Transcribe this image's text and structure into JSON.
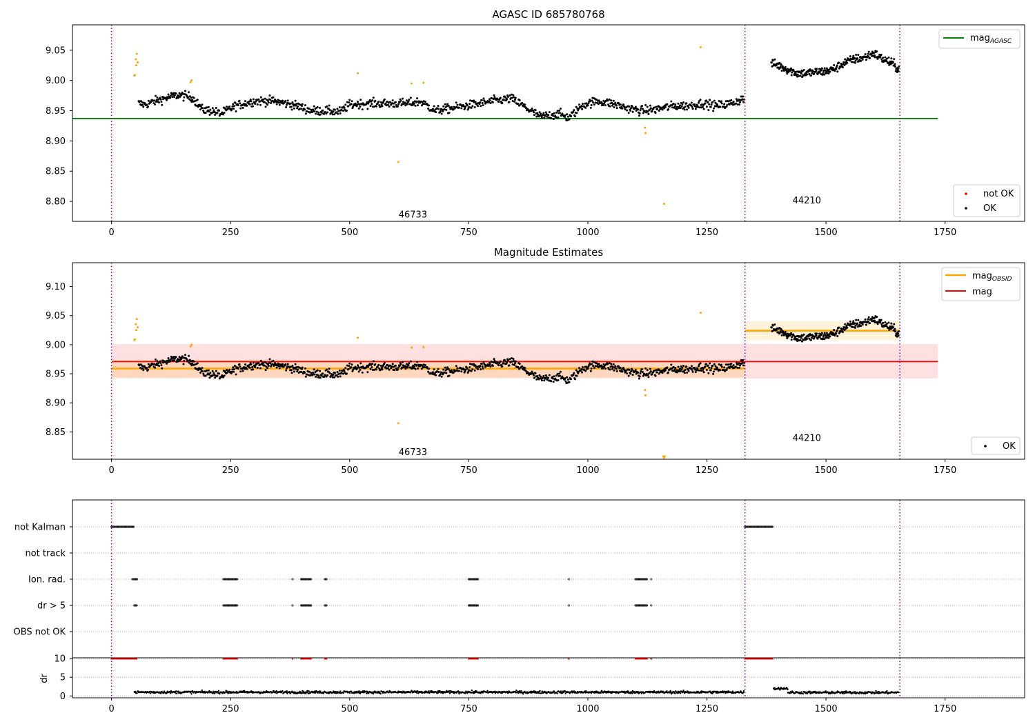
{
  "chart_data": [
    {
      "type": "scatter",
      "title": "AGASC ID 685780768",
      "xlim": [
        -82,
        1917
      ],
      "ylim": [
        8.767,
        9.092
      ],
      "x_ticks": [
        0,
        250,
        500,
        750,
        1000,
        1250,
        1500,
        1750
      ],
      "x_tick_labels": [
        "0",
        "250",
        "500",
        "750",
        "1000",
        "1250",
        "1500",
        "1750"
      ],
      "y_ticks": [
        8.8,
        8.85,
        8.9,
        8.95,
        9.0,
        9.05
      ],
      "y_tick_labels": [
        "8.80",
        "8.85",
        "8.90",
        "8.95",
        "9.00",
        "9.05"
      ],
      "obs_boundaries": [
        0,
        1330,
        1655
      ],
      "obs_labels": [
        {
          "text": "46733",
          "x": 665,
          "y": 8.778
        },
        {
          "text": "44210",
          "x": 1492,
          "y": 8.801
        }
      ],
      "mag_agasc": {
        "value": 8.937,
        "x_range": [
          -82,
          1735
        ]
      },
      "series": [
        {
          "name": "not OK",
          "color": "#ffa500",
          "points": [
            [
              48,
              9.008
            ],
            [
              49,
              9.009
            ],
            [
              51,
              9.035
            ],
            [
              52,
              9.025
            ],
            [
              53,
              9.044
            ],
            [
              55,
              9.03
            ],
            [
              166,
              8.997
            ],
            [
              168,
              9.0
            ],
            [
              517,
              9.012
            ],
            [
              602,
              8.865
            ],
            [
              630,
              8.995
            ],
            [
              655,
              8.996
            ],
            [
              1120,
              8.922
            ],
            [
              1121,
              8.913
            ],
            [
              1160,
              8.796
            ],
            [
              1237,
              9.055
            ]
          ]
        },
        {
          "name": "OK",
          "color": "#000000",
          "segments": [
            {
              "x_start": 57,
              "x_end": 1328,
              "points": 1040,
              "anchors": [
                [
                  57,
                  8.962
                ],
                [
                  70,
                  8.96
                ],
                [
                  100,
                  8.968
                ],
                [
                  140,
                  8.976
                ],
                [
                  170,
                  8.972
                ],
                [
                  190,
                  8.952
                ],
                [
                  210,
                  8.95
                ],
                [
                  230,
                  8.945
                ],
                [
                  260,
                  8.958
                ],
                [
                  300,
                  8.966
                ],
                [
                  340,
                  8.966
                ],
                [
                  380,
                  8.96
                ],
                [
                  420,
                  8.95
                ],
                [
                  450,
                  8.95
                ],
                [
                  480,
                  8.948
                ],
                [
                  500,
                  8.96
                ],
                [
                  540,
                  8.962
                ],
                [
                  580,
                  8.962
                ],
                [
                  620,
                  8.962
                ],
                [
                  650,
                  8.965
                ],
                [
                  680,
                  8.95
                ],
                [
                  720,
                  8.955
                ],
                [
                  760,
                  8.96
                ],
                [
                  800,
                  8.966
                ],
                [
                  840,
                  8.97
                ],
                [
                  870,
                  8.955
                ],
                [
                  900,
                  8.94
                ],
                [
                  940,
                  8.945
                ],
                [
                  960,
                  8.938
                ],
                [
                  990,
                  8.96
                ],
                [
                  1020,
                  8.966
                ],
                [
                  1050,
                  8.962
                ],
                [
                  1080,
                  8.955
                ],
                [
                  1110,
                  8.95
                ],
                [
                  1140,
                  8.952
                ],
                [
                  1180,
                  8.958
                ],
                [
                  1210,
                  8.958
                ],
                [
                  1240,
                  8.962
                ],
                [
                  1270,
                  8.958
                ],
                [
                  1300,
                  8.962
                ],
                [
                  1328,
                  8.97
                ]
              ]
            },
            {
              "x_start": 1385,
              "x_end": 1653,
              "points": 290,
              "anchors": [
                [
                  1385,
                  9.028
                ],
                [
                  1400,
                  9.025
                ],
                [
                  1420,
                  9.018
                ],
                [
                  1440,
                  9.012
                ],
                [
                  1460,
                  9.012
                ],
                [
                  1480,
                  9.014
                ],
                [
                  1500,
                  9.015
                ],
                [
                  1520,
                  9.02
                ],
                [
                  1540,
                  9.03
                ],
                [
                  1560,
                  9.035
                ],
                [
                  1580,
                  9.038
                ],
                [
                  1600,
                  9.045
                ],
                [
                  1620,
                  9.035
                ],
                [
                  1640,
                  9.028
                ],
                [
                  1650,
                  9.02
                ]
              ]
            }
          ]
        }
      ],
      "legend": [
        {
          "label": "mag",
          "subscript": "AGASC",
          "color": "#008000",
          "kind": "line",
          "position": "top-right"
        },
        {
          "label": "not OK",
          "color": "#ff0000",
          "kind": "point",
          "position": "bottom-right"
        },
        {
          "label": "OK",
          "color": "#000000",
          "kind": "point",
          "position": "bottom-right"
        }
      ]
    },
    {
      "type": "scatter",
      "title": "Magnitude Estimates",
      "xlim": [
        -82,
        1917
      ],
      "ylim": [
        8.803,
        9.141
      ],
      "x_ticks": [
        0,
        250,
        500,
        750,
        1000,
        1250,
        1500,
        1750
      ],
      "x_tick_labels": [
        "0",
        "250",
        "500",
        "750",
        "1000",
        "1250",
        "1500",
        "1750"
      ],
      "y_ticks": [
        8.85,
        8.9,
        8.95,
        9.0,
        9.05,
        9.1
      ],
      "y_tick_labels": [
        "8.85",
        "8.90",
        "8.95",
        "9.00",
        "9.05",
        "9.10"
      ],
      "obs_boundaries": [
        0,
        1330,
        1655
      ],
      "obs_labels": [
        {
          "text": "46733",
          "x": 665,
          "y": 8.815
        },
        {
          "text": "44210",
          "x": 1492,
          "y": 8.839
        }
      ],
      "mag": {
        "value": 8.971,
        "band": [
          8.942,
          9.001
        ],
        "color": "#ff0000",
        "x_range": [
          -82,
          1735
        ]
      },
      "mag_obsid": [
        {
          "x_range": [
            0,
            1330
          ],
          "value": 8.959,
          "band": [
            8.944,
            8.974
          ]
        },
        {
          "x_range": [
            1330,
            1655
          ],
          "value": 9.024,
          "band": [
            9.008,
            9.04
          ]
        }
      ],
      "clipped_marker": {
        "x": 1160,
        "y": 8.806,
        "color": "#ffa500"
      },
      "legend": [
        {
          "label": "mag",
          "subscript": "OBSID",
          "color": "#ffa500",
          "kind": "line",
          "position": "top-right"
        },
        {
          "label": "mag",
          "color": "#ff0000",
          "kind": "line",
          "position": "top-right"
        },
        {
          "label": "OK",
          "color": "#000000",
          "kind": "point",
          "position": "bottom-right"
        }
      ]
    },
    {
      "type": "scatter",
      "title": "",
      "xlim": [
        -82,
        1917
      ],
      "flag_rows": [
        "not Kalman",
        "not track",
        "Ion. rad.",
        "dr > 5",
        "OBS not OK"
      ],
      "flags": {
        "not Kalman": [
          [
            0,
            48
          ],
          [
            1330,
            1388
          ]
        ],
        "not track": [],
        "Ion. rad.": [
          [
            44,
            54
          ],
          [
            235,
            265
          ],
          [
            380,
            381
          ],
          [
            398,
            420
          ],
          [
            448,
            452
          ],
          [
            750,
            770
          ],
          [
            960,
            961
          ],
          [
            1100,
            1125
          ],
          [
            1133,
            1134
          ]
        ],
        "dr > 5": [
          [
            48,
            54
          ],
          [
            235,
            265
          ],
          [
            380,
            381
          ],
          [
            398,
            420
          ],
          [
            448,
            452
          ],
          [
            750,
            770
          ],
          [
            960,
            961
          ],
          [
            1100,
            1125
          ],
          [
            1133,
            1134
          ]
        ],
        "OBS not OK": []
      }
    },
    {
      "type": "scatter",
      "title": "",
      "ylabel": "dr",
      "xlim": [
        -82,
        1917
      ],
      "ylim": [
        -0.5,
        10.2
      ],
      "x_ticks": [
        0,
        250,
        500,
        750,
        1000,
        1250,
        1500,
        1750
      ],
      "x_tick_labels": [
        "0",
        "250",
        "500",
        "750",
        "1000",
        "1250",
        "1500",
        "1750"
      ],
      "y_ticks": [
        0,
        5,
        10
      ],
      "y_tick_labels": [
        "0",
        "5",
        "10"
      ],
      "clipped_at": 10,
      "clipped_ranges": [
        [
          0,
          54
        ],
        [
          235,
          265
        ],
        [
          380,
          381
        ],
        [
          398,
          420
        ],
        [
          448,
          452
        ],
        [
          750,
          770
        ],
        [
          960,
          961
        ],
        [
          1100,
          1125
        ],
        [
          1133,
          1134
        ],
        [
          1330,
          1388
        ]
      ],
      "segments": [
        [
          48,
          1328,
          1.0
        ],
        [
          1390,
          1420,
          2.0
        ],
        [
          1420,
          1653,
          0.9
        ]
      ]
    }
  ]
}
